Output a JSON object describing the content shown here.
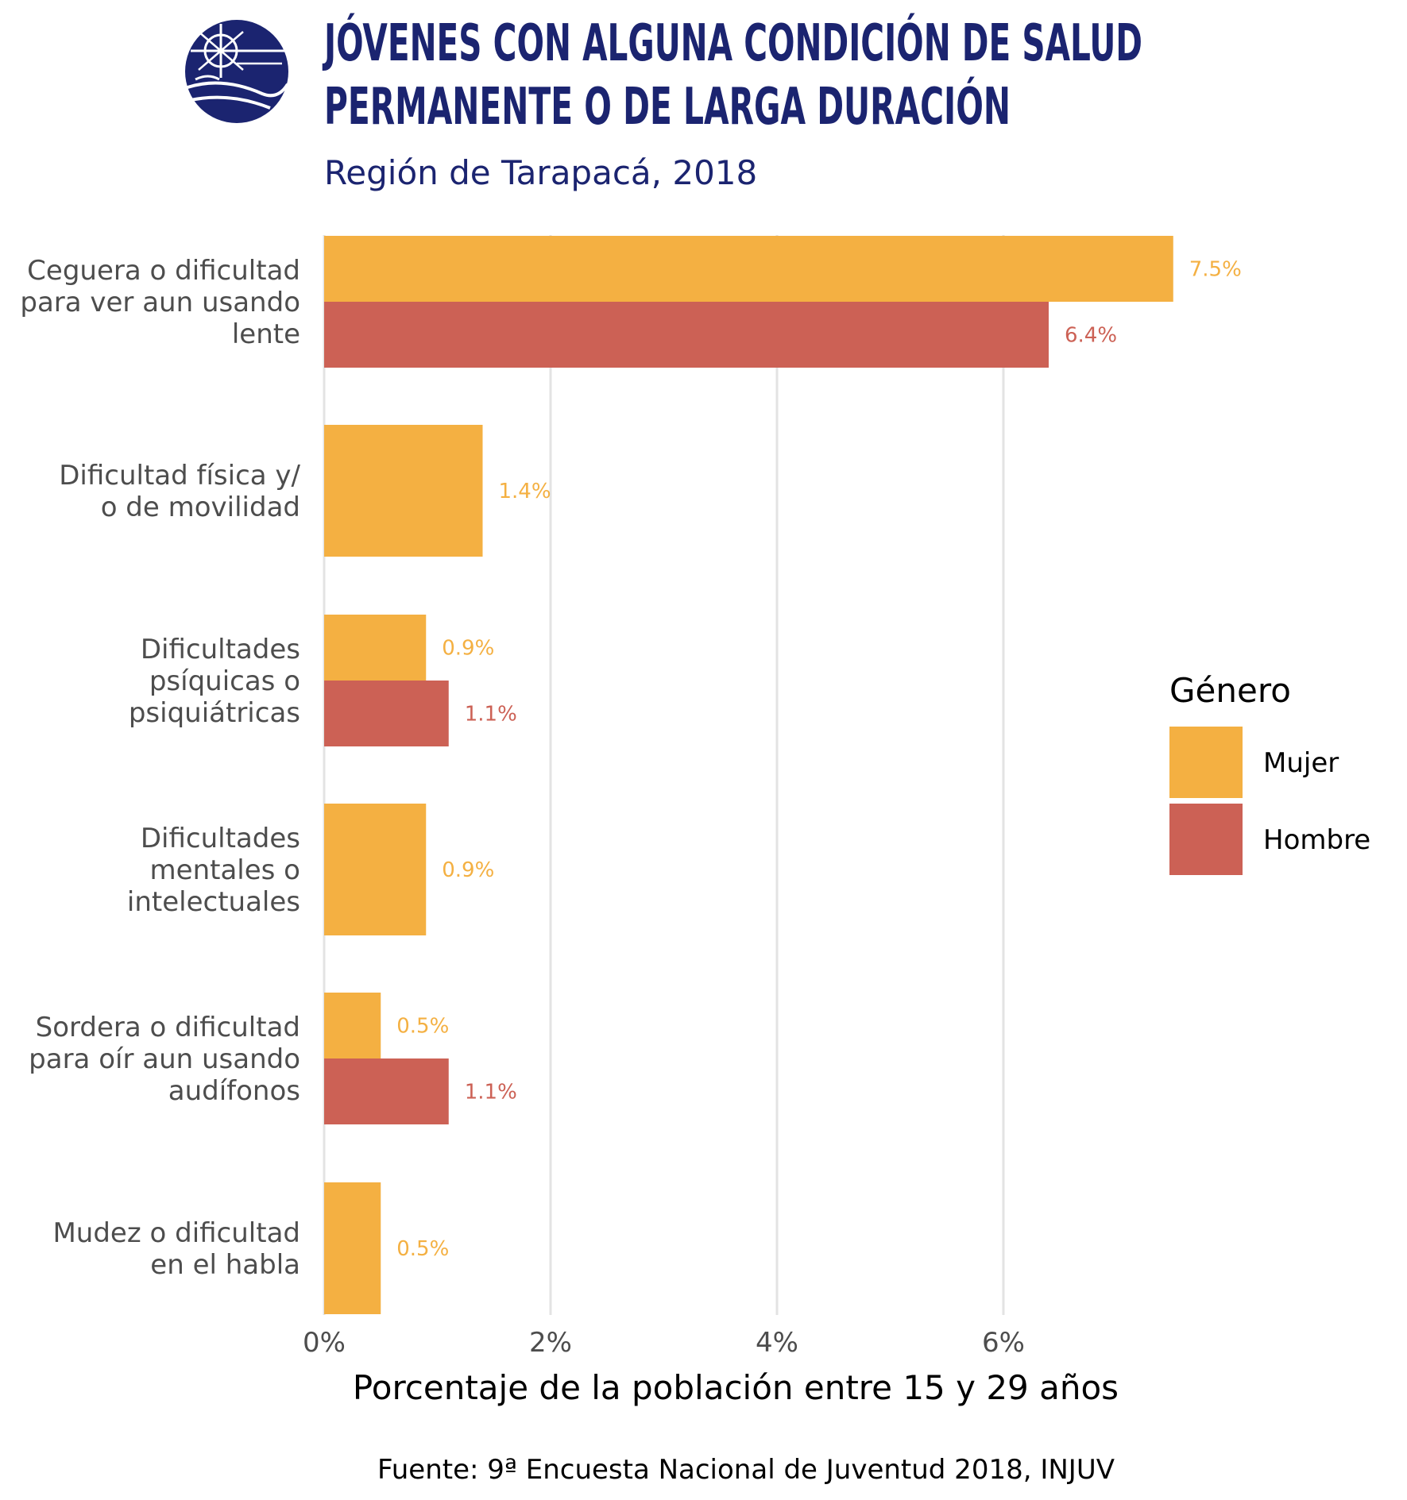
{
  "chart_data": {
    "type": "bar",
    "orientation": "horizontal",
    "title_lines": [
      "JÓVENES CON ALGUNA CONDICIÓN DE SALUD",
      "PERMANENTE O DE LARGA DURACIÓN"
    ],
    "subtitle": "Región de Tarapacá, 2018",
    "categories": [
      [
        "Ceguera o dificultad",
        "para ver aun usando",
        "lente"
      ],
      [
        "Dificultad física y/",
        "o de movilidad"
      ],
      [
        "Dificultades",
        "psíquicas o",
        "psiquiátricas"
      ],
      [
        "Dificultades",
        "mentales o",
        "intelectuales"
      ],
      [
        "Sordera o dificultad",
        "para oír aun usando",
        "audífonos"
      ],
      [
        "Mudez o dificultad",
        "en el habla"
      ]
    ],
    "series": [
      {
        "name": "Mujer",
        "color": "#f4b042",
        "values": [
          7.5,
          1.4,
          0.9,
          0.9,
          0.5,
          0.5
        ],
        "labels": [
          "7.5%",
          "1.4%",
          "0.9%",
          "0.9%",
          "0.5%",
          "0.5%"
        ]
      },
      {
        "name": "Hombre",
        "color": "#cc6155",
        "values": [
          6.4,
          null,
          1.1,
          null,
          1.1,
          null
        ],
        "labels": [
          "6.4%",
          null,
          "1.1%",
          null,
          "1.1%",
          null
        ]
      }
    ],
    "xticks": [
      0,
      2,
      4,
      6
    ],
    "xtick_labels": [
      "0%",
      "2%",
      "4%",
      "6%"
    ],
    "xlim": [
      0,
      8
    ],
    "xlabel": "Porcentaje de la población entre 15 y 29 años",
    "legend": {
      "title": "Género",
      "position": "right",
      "entries": [
        "Mujer",
        "Hombre"
      ]
    },
    "grid": "vertical major",
    "source": "Fuente: 9ª Encuesta Nacional de Juventud 2018, INJUV"
  },
  "colors": {
    "title": "#1b2470",
    "logo": "#1b2470"
  },
  "logo": {
    "icon": "injuv-globe-icon"
  }
}
